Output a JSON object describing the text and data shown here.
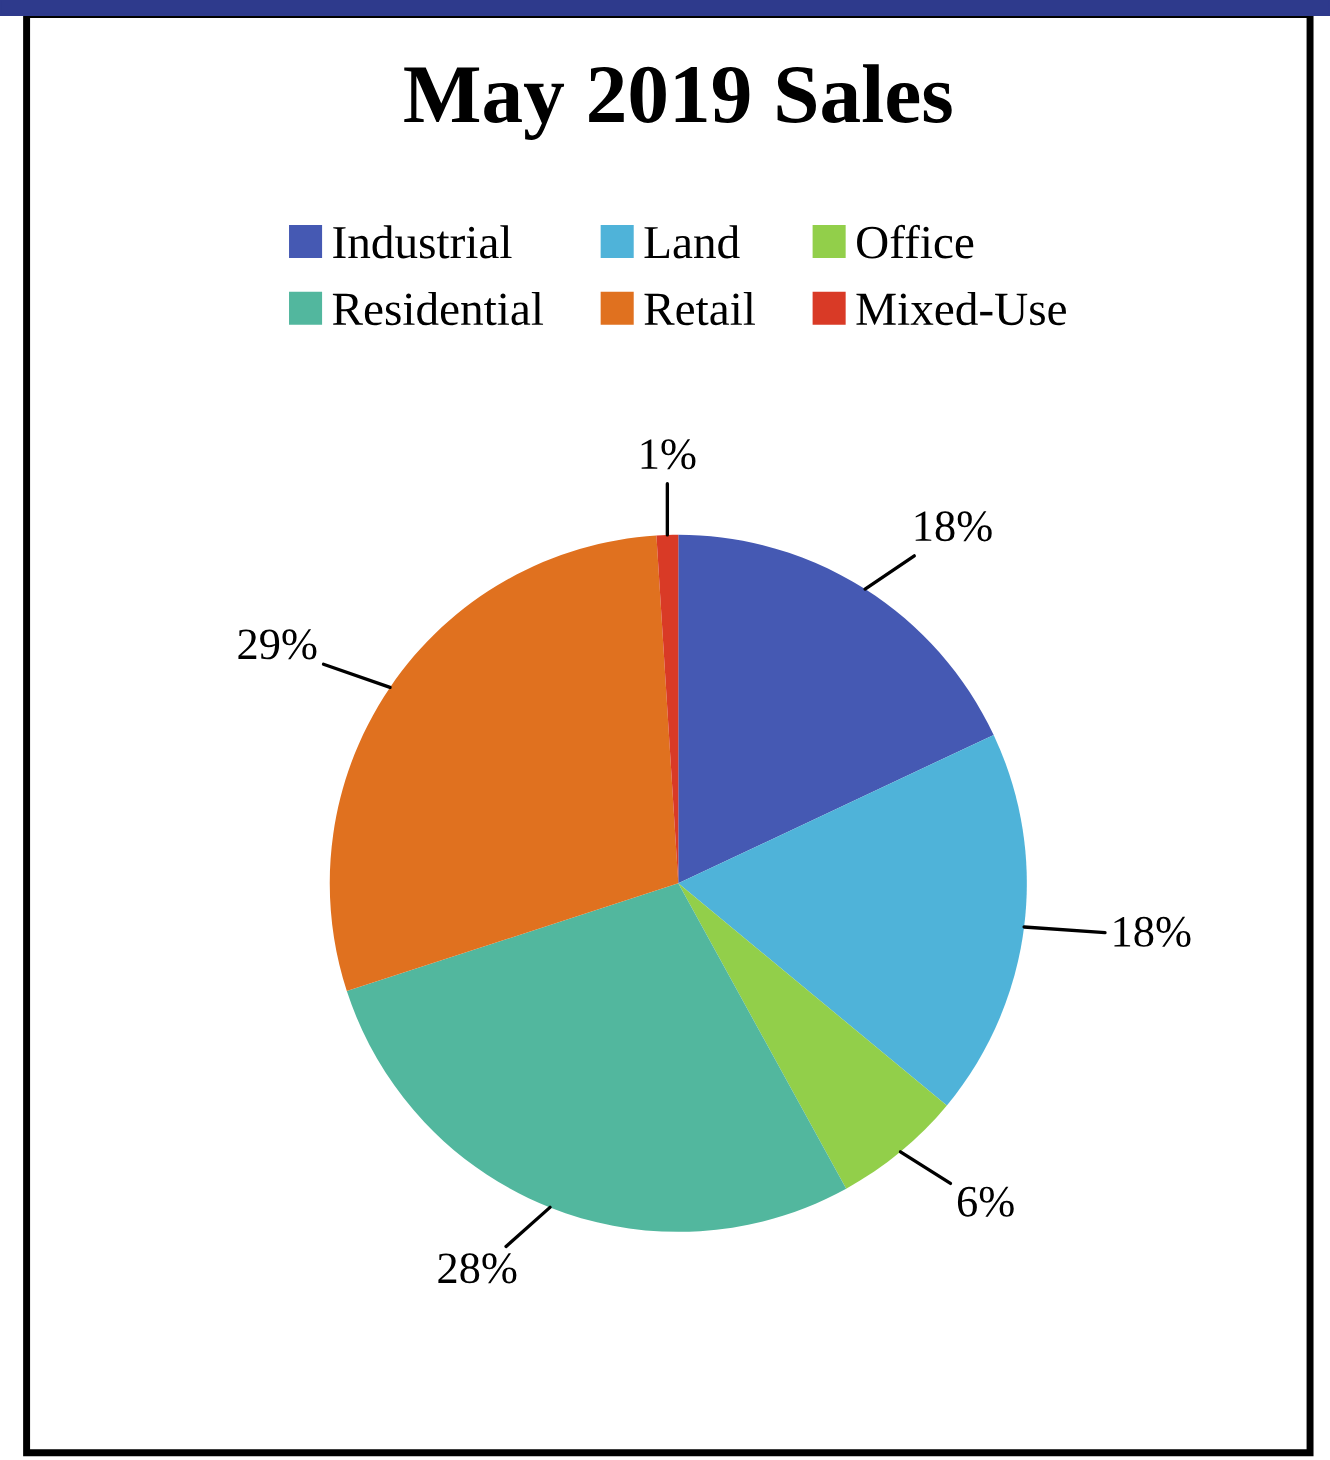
{
  "chart_data": {
    "type": "pie",
    "title": "May 2019 Sales",
    "categories": [
      "Industrial",
      "Land",
      "Office",
      "Residential",
      "Retail",
      "Mixed-Use"
    ],
    "values": [
      18,
      18,
      6,
      28,
      29,
      1
    ],
    "value_labels": [
      "18%",
      "18%",
      "6%",
      "28%",
      "29%",
      "1%"
    ],
    "colors": [
      "#4559b3",
      "#4fb3d9",
      "#92cf4a",
      "#52b79e",
      "#e0711f",
      "#d93a26"
    ],
    "legend": "top"
  }
}
